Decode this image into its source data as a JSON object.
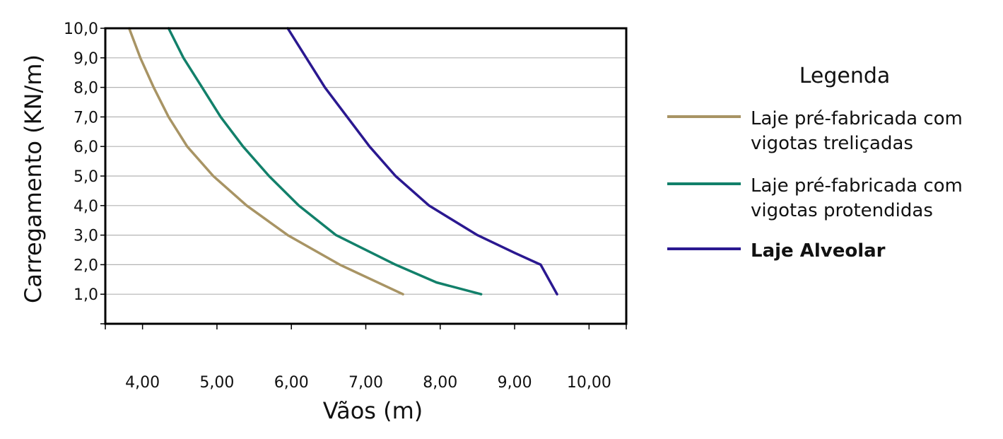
{
  "chart_data": {
    "type": "line",
    "xlabel": "Vãos (m)",
    "ylabel": "Carregamento (KN/m)",
    "xlim": [
      3.5,
      10.5
    ],
    "ylim": [
      0,
      10
    ],
    "x_ticks": [
      4,
      5,
      6,
      7,
      8,
      9,
      10
    ],
    "x_tick_labels": [
      "4,00",
      "5,00",
      "6,00",
      "7,00",
      "8,00",
      "9,00",
      "10,00"
    ],
    "y_ticks": [
      1,
      2,
      3,
      4,
      5,
      6,
      7,
      8,
      9,
      10
    ],
    "y_tick_labels": [
      "1,0",
      "2,0",
      "3,0",
      "4,0",
      "5,0",
      "6,0",
      "7,0",
      "8,0",
      "9,0",
      "10,0"
    ],
    "grid": true,
    "legend_title": "Legenda",
    "legend_position": "right",
    "series": [
      {
        "name": "Laje pré-fabricada com vigotas treliçadas",
        "name_lines": [
          "Laje pré-fabricada com",
          "vigotas treliçadas"
        ],
        "color": "#a89464",
        "bold": false,
        "points": [
          [
            3.82,
            10
          ],
          [
            3.97,
            9
          ],
          [
            4.15,
            8
          ],
          [
            4.35,
            7
          ],
          [
            4.6,
            6
          ],
          [
            4.95,
            5
          ],
          [
            5.4,
            4
          ],
          [
            5.95,
            3
          ],
          [
            6.65,
            2
          ],
          [
            7.5,
            1
          ]
        ]
      },
      {
        "name": "Laje pré-fabricada com vigotas protendidas",
        "name_lines": [
          "Laje pré-fabricada com",
          "vigotas protendidas"
        ],
        "color": "#12806a",
        "bold": false,
        "points": [
          [
            4.35,
            10
          ],
          [
            4.55,
            9
          ],
          [
            4.8,
            8
          ],
          [
            5.05,
            7
          ],
          [
            5.35,
            6
          ],
          [
            5.7,
            5
          ],
          [
            6.1,
            4
          ],
          [
            6.6,
            3
          ],
          [
            7.4,
            2
          ],
          [
            7.95,
            1.4
          ],
          [
            8.55,
            1
          ]
        ]
      },
      {
        "name": "Laje Alveolar",
        "name_lines": [
          "Laje Alveolar"
        ],
        "color": "#2a1890",
        "bold": true,
        "points": [
          [
            5.95,
            10
          ],
          [
            6.2,
            9
          ],
          [
            6.45,
            8
          ],
          [
            6.75,
            7
          ],
          [
            7.05,
            6
          ],
          [
            7.4,
            5
          ],
          [
            7.85,
            4
          ],
          [
            8.5,
            3
          ],
          [
            9.0,
            2.4
          ],
          [
            9.35,
            2
          ],
          [
            9.57,
            1
          ]
        ]
      }
    ]
  }
}
